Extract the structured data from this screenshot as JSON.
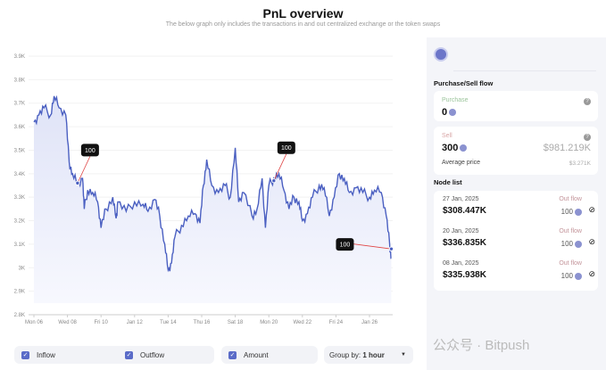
{
  "header": {
    "title": "PnL overview",
    "subtitle": "The below graph only includes the transactions in and out centralized exchange or the token swaps"
  },
  "chart_data": {
    "type": "line",
    "ylim": [
      2800,
      3900
    ],
    "yticks": [
      "3.9K",
      "3.8K",
      "3.7K",
      "3.6K",
      "3.5K",
      "3.4K",
      "3.3K",
      "3.2K",
      "3.1K",
      "3K",
      "2.9K",
      "2.8K"
    ],
    "ytick_values": [
      3900,
      3800,
      3700,
      3600,
      3500,
      3400,
      3300,
      3200,
      3100,
      3000,
      2900,
      2800
    ],
    "xticks": [
      "Mon 06",
      "Wed 08",
      "Fri 10",
      "Jan 12",
      "Tue 14",
      "Thu 16",
      "Sat 18",
      "Mon 20",
      "Wed 22",
      "Fri 24",
      "Jan 26"
    ],
    "xtick_days": [
      6,
      8,
      10,
      12,
      14,
      16,
      18,
      20,
      22,
      24,
      26
    ],
    "x_unit": "day of Jan 2025",
    "series": [
      {
        "color": "#4a5fc1",
        "x": [
          6,
          6.3,
          6.6,
          7,
          7.2,
          7.5,
          7.9,
          8.1,
          8.3,
          8.6,
          8.9,
          9,
          9.2,
          9.5,
          9.8,
          10,
          10.3,
          10.7,
          10.9,
          11,
          11.5,
          12,
          12.5,
          12.8,
          13.2,
          13.5,
          13.8,
          14,
          14.2,
          14.4,
          14.8,
          15.2,
          15.6,
          15.9,
          16.1,
          16.3,
          16.6,
          17,
          17.4,
          17.7,
          18,
          18.2,
          18.5,
          19,
          19.3,
          19.6,
          19.8,
          20,
          20.3,
          20.6,
          20.9,
          21.2,
          21.5,
          21.8,
          22,
          22.3,
          22.6,
          23,
          23.3,
          23.6,
          23.9,
          24.2,
          24.5,
          24.8,
          25.2,
          25.6,
          26,
          26.3,
          26.7,
          27,
          27.2,
          27.3
        ],
        "y": [
          3620,
          3650,
          3680,
          3650,
          3730,
          3680,
          3650,
          3450,
          3400,
          3360,
          3380,
          3250,
          3330,
          3320,
          3280,
          3170,
          3250,
          3300,
          3210,
          3280,
          3240,
          3280,
          3270,
          3240,
          3290,
          3220,
          3100,
          2990,
          3020,
          3130,
          3180,
          3220,
          3230,
          3190,
          3350,
          3460,
          3350,
          3320,
          3350,
          3300,
          3510,
          3280,
          3320,
          3220,
          3250,
          3380,
          3170,
          3350,
          3380,
          3400,
          3330,
          3250,
          3300,
          3280,
          3200,
          3230,
          3300,
          3350,
          3340,
          3220,
          3300,
          3400,
          3380,
          3320,
          3340,
          3320,
          3300,
          3330,
          3320,
          3220,
          3100,
          3040
        ]
      }
    ],
    "annotations": [
      {
        "day": 8.6,
        "price": 3360,
        "label": "100"
      },
      {
        "day": 20.3,
        "price": 3370,
        "label": "100"
      },
      {
        "day": 27.3,
        "price": 3080,
        "label": "100"
      }
    ],
    "fill": "area under line",
    "grid": true
  },
  "controls": {
    "inflow": "Inflow",
    "outflow": "Outflow",
    "amount": "Amount",
    "group_label": "Group by:",
    "group_value": "1 hour"
  },
  "panel": {
    "flow_title": "Purchase/Sell flow",
    "purchase_label": "Purchase",
    "purchase_value": "0",
    "sell_label": "Sell",
    "sell_value": "300",
    "sell_usd": "$981.219K",
    "avg_label": "Average price",
    "avg_value": "$3.271K",
    "node_title": "Node list",
    "nodes": [
      {
        "date": "27 Jan, 2025",
        "value": "$308.447K",
        "flow": "Out flow",
        "amount": "100"
      },
      {
        "date": "20 Jan, 2025",
        "value": "$336.835K",
        "flow": "Out flow",
        "amount": "100"
      },
      {
        "date": "08 Jan, 2025",
        "value": "$335.938K",
        "flow": "Out flow",
        "amount": "100"
      }
    ]
  },
  "watermark": "公众号 · Bitpush"
}
